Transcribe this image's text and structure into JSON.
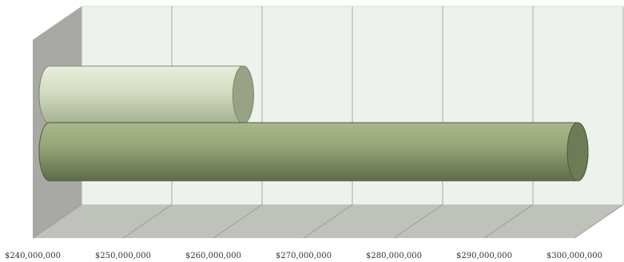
{
  "chart_data": {
    "type": "bar",
    "orientation": "horizontal",
    "style": "3d-cylinder",
    "title": "",
    "xlabel": "",
    "ylabel": "",
    "grid": true,
    "legend": "none",
    "xlim": [
      240000000,
      300000000
    ],
    "ticks": [
      240000000,
      250000000,
      260000000,
      270000000,
      280000000,
      290000000,
      300000000
    ],
    "tick_labels": [
      "$240,000,000",
      "$250,000,000",
      "$260,000,000",
      "$270,000,000",
      "$280,000,000",
      "$290,000,000",
      "$300,000,000"
    ],
    "categories": [
      "",
      ""
    ],
    "values": [
      262000000,
      300000000
    ],
    "colors": {
      "top_bar": "#c9d4b4",
      "bottom_bar": "#8f9f70",
      "wall": "#eef2ec",
      "side_wall": "#a8a9a4",
      "floor": "#bfc2bb",
      "gridline": "#a9aba6"
    }
  }
}
